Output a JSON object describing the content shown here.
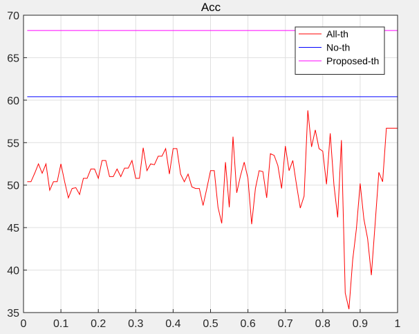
{
  "chart_data": {
    "type": "line",
    "title": "Acc",
    "xlabel": "",
    "ylabel": "",
    "xlim": [
      0,
      1
    ],
    "ylim": [
      35,
      70
    ],
    "xticks": [
      "0",
      "0.1",
      "0.2",
      "0.3",
      "0.4",
      "0.5",
      "0.6",
      "0.7",
      "0.8",
      "0.9",
      "1"
    ],
    "yticks": [
      "35",
      "40",
      "45",
      "50",
      "55",
      "60",
      "65",
      "70"
    ],
    "grid": true,
    "legend_position": "top-right",
    "series": [
      {
        "name": "All-th",
        "color": "#ff0000",
        "x": [
          0.01,
          0.02,
          0.03,
          0.04,
          0.05,
          0.06,
          0.07,
          0.08,
          0.09,
          0.1,
          0.11,
          0.12,
          0.13,
          0.14,
          0.15,
          0.16,
          0.17,
          0.18,
          0.19,
          0.2,
          0.21,
          0.22,
          0.23,
          0.24,
          0.25,
          0.26,
          0.27,
          0.28,
          0.29,
          0.3,
          0.31,
          0.32,
          0.33,
          0.34,
          0.35,
          0.36,
          0.37,
          0.38,
          0.39,
          0.4,
          0.41,
          0.42,
          0.43,
          0.44,
          0.45,
          0.46,
          0.47,
          0.48,
          0.49,
          0.5,
          0.51,
          0.52,
          0.53,
          0.54,
          0.55,
          0.56,
          0.57,
          0.58,
          0.59,
          0.6,
          0.61,
          0.62,
          0.63,
          0.64,
          0.65,
          0.66,
          0.67,
          0.68,
          0.69,
          0.7,
          0.71,
          0.72,
          0.73,
          0.74,
          0.75,
          0.76,
          0.77,
          0.78,
          0.79,
          0.8,
          0.81,
          0.82,
          0.83,
          0.84,
          0.85,
          0.86,
          0.87,
          0.88,
          0.89,
          0.9,
          0.91,
          0.92,
          0.93,
          0.94,
          0.95,
          0.96,
          0.97,
          0.98,
          0.99,
          1.0
        ],
        "y": [
          50.4,
          50.4,
          51.4,
          52.5,
          51.4,
          52.5,
          49.4,
          50.4,
          50.4,
          52.5,
          50.4,
          48.5,
          49.6,
          49.7,
          48.9,
          50.8,
          50.8,
          51.9,
          51.9,
          50.8,
          52.9,
          52.9,
          51.0,
          51.0,
          51.9,
          51.0,
          52.0,
          52.0,
          52.9,
          50.8,
          50.8,
          54.4,
          51.7,
          52.5,
          52.4,
          53.4,
          53.4,
          54.3,
          51.3,
          54.3,
          54.3,
          51.3,
          50.4,
          51.3,
          49.8,
          49.6,
          49.6,
          47.6,
          49.6,
          51.7,
          51.7,
          47.4,
          45.5,
          52.7,
          47.4,
          55.7,
          49.1,
          51.1,
          52.7,
          50.8,
          45.4,
          49.6,
          51.7,
          51.6,
          48.5,
          53.7,
          53.5,
          52.3,
          49.6,
          54.6,
          51.7,
          52.9,
          50.0,
          47.3,
          48.7,
          58.8,
          54.5,
          56.5,
          54.3,
          54.0,
          50.1,
          56.1,
          50.0,
          46.2,
          55.3,
          37.3,
          35.4,
          41.2,
          44.9,
          50.2,
          46.0,
          43.7,
          39.4,
          45.4,
          51.5,
          50.4,
          56.7,
          56.7,
          56.7,
          56.7
        ]
      },
      {
        "name": "No-th",
        "color": "#0000ff",
        "x": [
          0.01,
          1.0
        ],
        "y": [
          60.4,
          60.4
        ]
      },
      {
        "name": "Proposed-th",
        "color": "#ff00ff",
        "x": [
          0.01,
          1.0
        ],
        "y": [
          68.2,
          68.2
        ]
      }
    ]
  }
}
